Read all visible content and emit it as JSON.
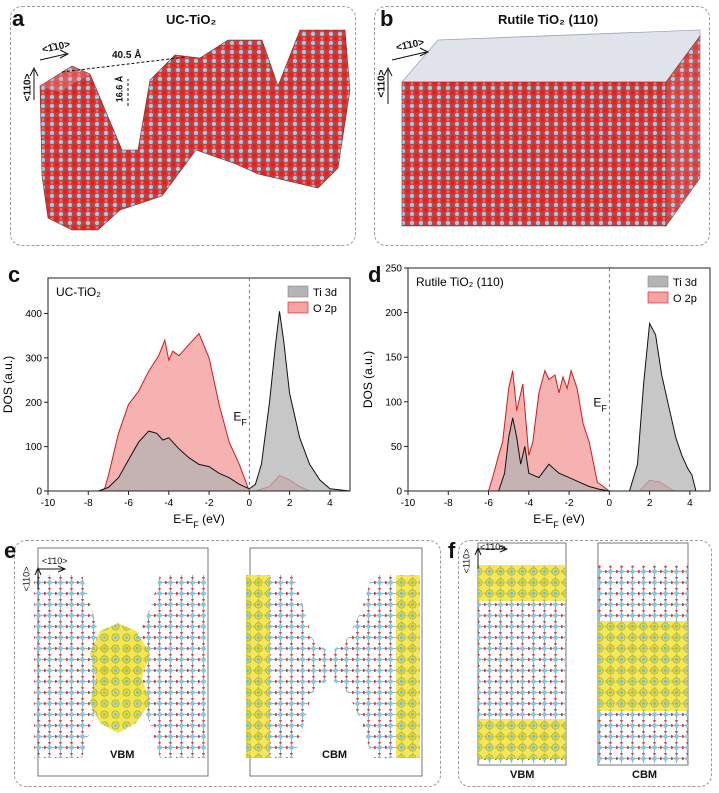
{
  "panels": {
    "a": {
      "letter": "a",
      "title": "UC-TiO₂",
      "dir_h": "<110>",
      "dir_v": "<1̄10>",
      "dim1": "40.5 Å",
      "dim2": "16.6 Å"
    },
    "b": {
      "letter": "b",
      "title": "Rutile TiO₂ (110)",
      "dir_h": "<110>",
      "dir_v": "<1̄10>"
    },
    "c": {
      "letter": "c",
      "title": "UC-TiO₂"
    },
    "d": {
      "letter": "d",
      "title": "Rutile TiO₂ (110)"
    },
    "e": {
      "letter": "e",
      "dir_h": "<1̄10>",
      "dir_v": "<110>",
      "left_label": "VBM",
      "right_label": "CBM"
    },
    "f": {
      "letter": "f",
      "dir_h": "<1̄10>",
      "dir_v": "<110>",
      "left_label": "VBM",
      "right_label": "CBM"
    }
  },
  "colors": {
    "ti": "#7ec8e8",
    "o": "#d62020",
    "ti3d_fill": "#b4b4b4",
    "ti3d_line": "#111111",
    "o2p_fill": "#f5a3a3",
    "o2p_line": "#d11b1b",
    "charge": "#e8d800"
  },
  "chart_data": [
    {
      "type": "area",
      "title": "UC-TiO₂",
      "xlabel": "E-E_F (eV)",
      "ylabel": "DOS (a.u.)",
      "xlim": [
        -10,
        5
      ],
      "ylim": [
        0,
        480
      ],
      "xticks": [
        -10,
        -8,
        -6,
        -4,
        -2,
        0,
        2,
        4
      ],
      "yticks": [
        0,
        100,
        200,
        300,
        400
      ],
      "fermi_label": "E_F",
      "legend": "top-right",
      "series": [
        {
          "name": "Ti 3d",
          "x": [
            -10,
            -7.5,
            -7,
            -6.5,
            -6,
            -5.5,
            -5,
            -4.6,
            -4.3,
            -4,
            -3.5,
            -3,
            -2.5,
            -2,
            -1.5,
            -1,
            -0.5,
            0,
            0.3,
            0.6,
            1,
            1.3,
            1.5,
            1.7,
            2,
            2.5,
            3,
            3.5,
            4,
            5
          ],
          "y": [
            0,
            0,
            8,
            30,
            70,
            110,
            135,
            130,
            115,
            120,
            95,
            75,
            60,
            55,
            40,
            30,
            15,
            5,
            15,
            60,
            200,
            330,
            405,
            340,
            220,
            120,
            60,
            25,
            5,
            0
          ]
        },
        {
          "name": "O 2p",
          "x": [
            -10,
            -7.5,
            -7.2,
            -7,
            -6.5,
            -6,
            -5.5,
            -5,
            -4.5,
            -4.2,
            -4,
            -3.8,
            -3.5,
            -3,
            -2.5,
            -2,
            -1.5,
            -1,
            -0.5,
            0,
            0.3,
            1,
            1.5,
            2,
            2.5,
            3,
            5
          ],
          "y": [
            0,
            0,
            3,
            35,
            130,
            195,
            225,
            270,
            305,
            340,
            295,
            315,
            305,
            330,
            355,
            300,
            195,
            110,
            60,
            0,
            0,
            10,
            35,
            25,
            10,
            0,
            0
          ]
        }
      ]
    },
    {
      "type": "area",
      "title": "Rutile TiO₂ (110)",
      "xlabel": "E-E_F (eV)",
      "ylabel": "DOS (a.u.)",
      "xlim": [
        -10,
        5
      ],
      "ylim": [
        0,
        250
      ],
      "xticks": [
        -10,
        -8,
        -6,
        -4,
        -2,
        0,
        2,
        4
      ],
      "yticks": [
        0,
        50,
        100,
        150,
        200,
        250
      ],
      "fermi_label": "E_F",
      "legend": "top-right",
      "series": [
        {
          "name": "Ti 3d",
          "x": [
            -10,
            -5.5,
            -5.2,
            -5,
            -4.8,
            -4.6,
            -4.4,
            -4.2,
            -4,
            -3.5,
            -3,
            -2.5,
            -2,
            -1.5,
            -1,
            -0.5,
            0,
            1,
            1.4,
            1.7,
            2,
            2.3,
            2.6,
            3,
            3.3,
            3.6,
            3.9,
            4.1,
            4.3,
            5
          ],
          "y": [
            0,
            0,
            20,
            60,
            82,
            60,
            30,
            50,
            20,
            15,
            30,
            20,
            15,
            10,
            5,
            2,
            0,
            0,
            30,
            120,
            188,
            175,
            130,
            90,
            60,
            40,
            25,
            18,
            0,
            0
          ]
        },
        {
          "name": "O 2p",
          "x": [
            -10,
            -6,
            -5.8,
            -5.5,
            -5.3,
            -5,
            -4.8,
            -4.6,
            -4.3,
            -4,
            -3.8,
            -3.5,
            -3.2,
            -3,
            -2.7,
            -2.5,
            -2.3,
            -2.1,
            -1.9,
            -1.6,
            -1.3,
            -1,
            -0.6,
            0,
            1.5,
            2,
            2.5,
            3.2,
            5
          ],
          "y": [
            0,
            0,
            15,
            40,
            55,
            115,
            135,
            90,
            120,
            40,
            55,
            110,
            135,
            125,
            130,
            110,
            128,
            115,
            135,
            115,
            75,
            55,
            10,
            0,
            0,
            12,
            10,
            0,
            0
          ]
        }
      ]
    }
  ]
}
